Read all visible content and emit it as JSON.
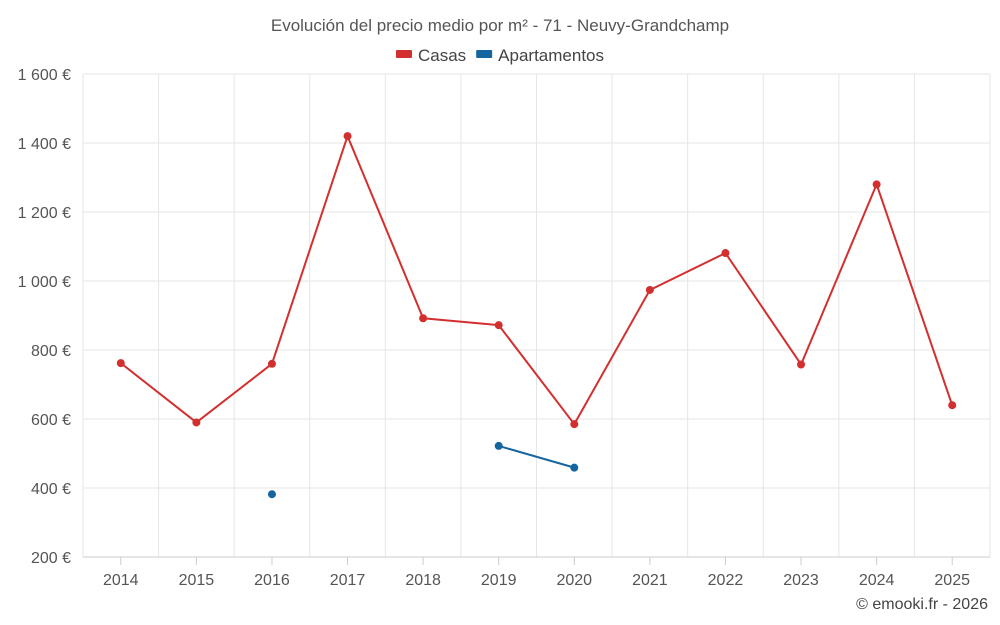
{
  "chart_data": {
    "type": "line",
    "title": "Evolución del precio medio por m² - 71 - Neuvy-Grandchamp",
    "categories": [
      "2014",
      "2015",
      "2016",
      "2017",
      "2018",
      "2019",
      "2020",
      "2021",
      "2022",
      "2023",
      "2024",
      "2025"
    ],
    "series": [
      {
        "name": "Casas",
        "color": "#d32f2f",
        "values": [
          762,
          590,
          760,
          1420,
          892,
          872,
          585,
          974,
          1081,
          758,
          1280,
          640
        ]
      },
      {
        "name": "Apartamentos",
        "color": "#1565a0",
        "values": [
          null,
          null,
          382,
          null,
          null,
          522,
          459,
          null,
          null,
          null,
          null,
          null
        ]
      }
    ],
    "ylim": [
      200,
      1600
    ],
    "y_ticks": [
      200,
      400,
      600,
      800,
      1000,
      1200,
      1400,
      1600
    ],
    "y_tick_labels": [
      "200 €",
      "400 €",
      "600 €",
      "800 €",
      "1 000 €",
      "1 200 €",
      "1 400 €",
      "1 600 €"
    ],
    "grid": true,
    "legend_position": "top-center"
  },
  "credit": "© emooki.fr - 2026"
}
